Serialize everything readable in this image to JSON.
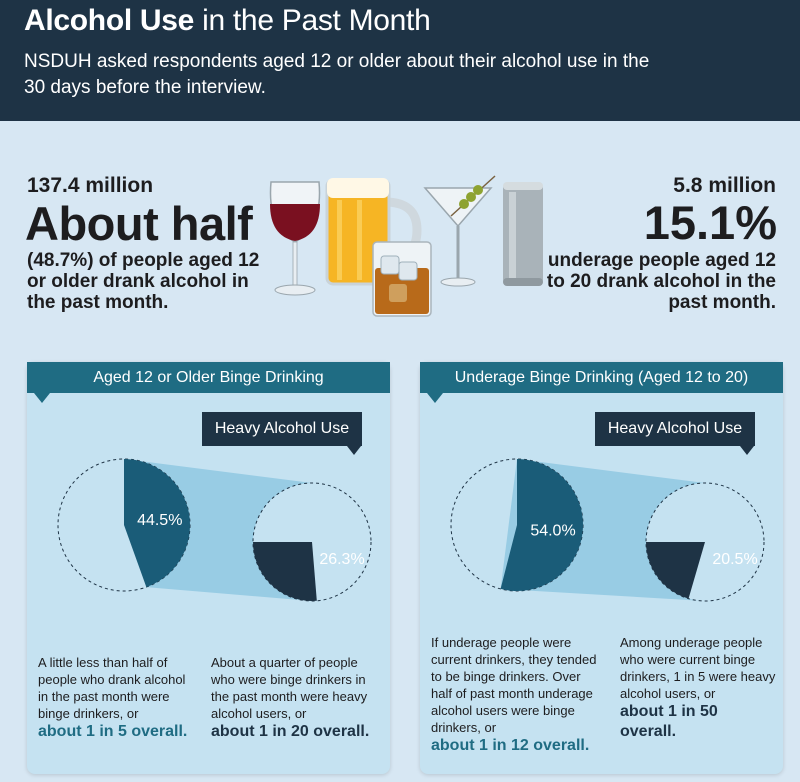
{
  "header": {
    "title_bold": "Alcohol Use",
    "title_rest": " in the Past Month",
    "subtitle": "NSDUH asked respondents aged 12 or older about their alcohol use in the 30 days before the interview."
  },
  "left_stat": {
    "count": "137.4 million",
    "headline": "About half",
    "description": "(48.7%) of people aged 12 or older drank alcohol in the past month."
  },
  "right_stat": {
    "count": "5.8 million",
    "headline": "15.1%",
    "description": "of underage people aged 12 to 20 drank alcohol in the past month."
  },
  "icons": [
    "wine-glass-icon",
    "beer-mug-icon",
    "whiskey-glass-icon",
    "martini-glass-icon",
    "beer-can-icon"
  ],
  "panels": [
    {
      "banner": "Aged 12 or Older Binge Drinking",
      "heavy_label": "Heavy Alcohol Use",
      "binge_pct": 44.5,
      "binge_label": "44.5%",
      "heavy_pct": 26.3,
      "heavy_label_value": "26.3%",
      "caption_left": "A little less than half of people who drank alcohol in the past month were binge drinkers, or",
      "caption_left_hl": "about 1 in 5 overall.",
      "caption_right": "About a quarter of people who were binge drinkers in the past month were heavy alcohol users, or",
      "caption_right_hl": "about 1 in 20 overall."
    },
    {
      "banner": "Underage Binge Drinking (Aged 12 to 20)",
      "heavy_label": "Heavy Alcohol Use",
      "binge_pct": 54.0,
      "binge_label": "54.0%",
      "heavy_pct": 20.5,
      "heavy_label_value": "20.5%",
      "caption_left": "If underage people were current drinkers, they tended to be binge drinkers. Over half of past month underage alcohol users were binge drinkers, or",
      "caption_left_hl": "about 1 in 12 overall.",
      "caption_right": "Among underage people who were current binge drinkers, 1 in 5 were heavy alcohol users, or",
      "caption_right_hl": "about 1 in 50 overall."
    }
  ],
  "colors": {
    "header_bg": "#1e3345",
    "page_bg": "#d7e7f3",
    "panel_bg": "#c5e2f1",
    "banner": "#1f6c83",
    "binge_wedge": "#1a5c78",
    "heavy_wedge": "#1e3345",
    "connector": "#8fc8e2",
    "highlight_blue": "#1f6c83"
  }
}
